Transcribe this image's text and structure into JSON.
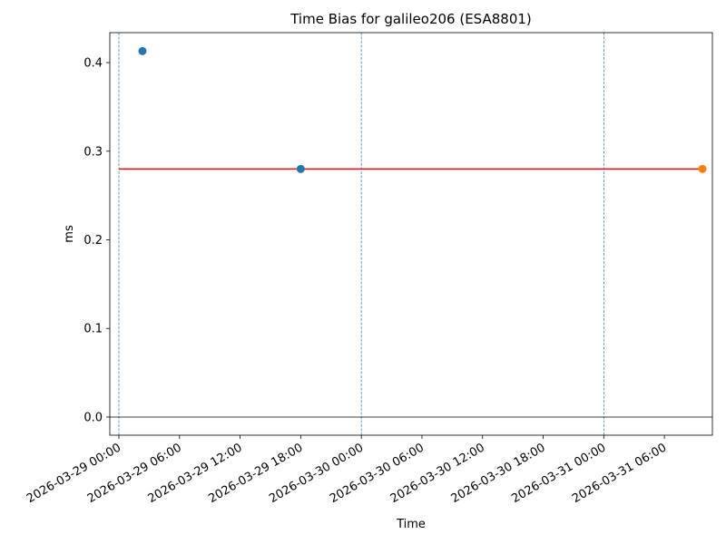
{
  "chart_data": {
    "type": "scatter",
    "title": "Time Bias for galileo206 (ESA8801)",
    "x_label": "Time",
    "y_label": "ms",
    "series": [
      {
        "color": "#1f77b4",
        "x": [
          "2026-03-29 02:20",
          "2026-03-29 18:00"
        ],
        "values": [
          0.413,
          0.28
        ]
      },
      {
        "color": "#ff7f0e",
        "x": [
          "2026-03-31 09:46"
        ],
        "values": [
          0.28
        ]
      }
    ],
    "reference_line": {
      "color": "#ff0000",
      "x": [
        "2026-03-29 00:00",
        "2026-03-31 09:46"
      ],
      "values": [
        0.28,
        0.28
      ]
    },
    "zero_line": {
      "value": 0,
      "color": "#000000"
    },
    "vlines": {
      "color": "#1f77b4",
      "x": [
        "2026-03-29 00:00",
        "2026-03-30 00:00",
        "2026-03-31 00:00"
      ]
    },
    "xlim": [
      "2026-03-28 23:06",
      "2026-03-31 10:45"
    ],
    "xticks": [
      "2026-03-29 00:00",
      "2026-03-29 06:00",
      "2026-03-29 12:00",
      "2026-03-29 18:00",
      "2026-03-30 00:00",
      "2026-03-30 06:00",
      "2026-03-30 12:00",
      "2026-03-30 18:00",
      "2026-03-31 00:00",
      "2026-03-31 06:00"
    ],
    "ylim": [
      -0.0205,
      0.4338
    ],
    "yticks": [
      {
        "value": 0,
        "label": "0.0"
      },
      {
        "value": 0.1,
        "label": "0.1"
      },
      {
        "value": 0.2,
        "label": "0.2"
      },
      {
        "value": 0.3,
        "label": "0.3"
      },
      {
        "value": 0.4,
        "label": "0.4"
      }
    ],
    "grid": false
  }
}
